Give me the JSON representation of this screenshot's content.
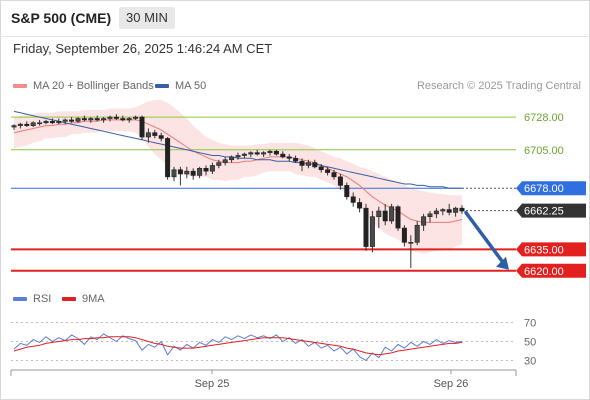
{
  "header": {
    "title": "S&P 500 (CME)",
    "timeframe": "30 MIN",
    "datetime": "Friday, September 26, 2025 1:46:24 AM CET"
  },
  "legend": {
    "items": [
      {
        "label": "MA 20 + Bollinger Bands",
        "color": "#f28c8c"
      },
      {
        "label": "MA 50",
        "color": "#3a5da8"
      }
    ],
    "credit": "Research © 2025 Trading Central"
  },
  "rsi_legend": {
    "items": [
      {
        "label": "RSI",
        "color": "#5b7fd6"
      },
      {
        "label": "9MA",
        "color": "#e02020"
      }
    ]
  },
  "chart_data": [
    {
      "type": "line",
      "title": "S&P 500 (CME)",
      "ylim": [
        6610,
        6740
      ],
      "x_ticks": [
        "Sep 25",
        "Sep 26"
      ],
      "levels": [
        {
          "name": "6728.00",
          "value": 6728.0,
          "color": "#8cc63f",
          "kind": "resistance"
        },
        {
          "name": "6705.00",
          "value": 6705.0,
          "color": "#8cc63f",
          "kind": "resistance"
        },
        {
          "name": "6678.00",
          "value": 6678.0,
          "color": "#2f6fe0",
          "kind": "pivot"
        },
        {
          "name": "6662.25",
          "value": 6662.25,
          "color": "#333333",
          "kind": "last"
        },
        {
          "name": "6635.00",
          "value": 6635.0,
          "color": "#e32020",
          "kind": "support"
        },
        {
          "name": "6620.00",
          "value": 6620.0,
          "color": "#e32020",
          "kind": "support"
        }
      ],
      "candles": [
        {
          "o": 6721,
          "h": 6723,
          "l": 6719,
          "c": 6722
        },
        {
          "o": 6722,
          "h": 6724,
          "l": 6720,
          "c": 6723
        },
        {
          "o": 6723,
          "h": 6725,
          "l": 6721,
          "c": 6722
        },
        {
          "o": 6722,
          "h": 6725,
          "l": 6721,
          "c": 6724
        },
        {
          "o": 6724,
          "h": 6726,
          "l": 6722,
          "c": 6724
        },
        {
          "o": 6724,
          "h": 6726,
          "l": 6723,
          "c": 6725
        },
        {
          "o": 6725,
          "h": 6727,
          "l": 6723,
          "c": 6724
        },
        {
          "o": 6724,
          "h": 6727,
          "l": 6723,
          "c": 6725
        },
        {
          "o": 6725,
          "h": 6727,
          "l": 6723,
          "c": 6726
        },
        {
          "o": 6726,
          "h": 6728,
          "l": 6724,
          "c": 6725
        },
        {
          "o": 6725,
          "h": 6728,
          "l": 6724,
          "c": 6727
        },
        {
          "o": 6727,
          "h": 6729,
          "l": 6725,
          "c": 6726
        },
        {
          "o": 6726,
          "h": 6728,
          "l": 6724,
          "c": 6727
        },
        {
          "o": 6727,
          "h": 6729,
          "l": 6725,
          "c": 6726
        },
        {
          "o": 6726,
          "h": 6728,
          "l": 6724,
          "c": 6727
        },
        {
          "o": 6727,
          "h": 6729,
          "l": 6725,
          "c": 6728
        },
        {
          "o": 6728,
          "h": 6730,
          "l": 6726,
          "c": 6727
        },
        {
          "o": 6727,
          "h": 6729,
          "l": 6725,
          "c": 6726
        },
        {
          "o": 6726,
          "h": 6728,
          "l": 6724,
          "c": 6727
        },
        {
          "o": 6727,
          "h": 6729,
          "l": 6726,
          "c": 6728
        },
        {
          "o": 6728,
          "h": 6729,
          "l": 6712,
          "c": 6714
        },
        {
          "o": 6714,
          "h": 6720,
          "l": 6710,
          "c": 6717
        },
        {
          "o": 6717,
          "h": 6719,
          "l": 6713,
          "c": 6715
        },
        {
          "o": 6715,
          "h": 6717,
          "l": 6711,
          "c": 6713
        },
        {
          "o": 6713,
          "h": 6714,
          "l": 6684,
          "c": 6686
        },
        {
          "o": 6686,
          "h": 6693,
          "l": 6683,
          "c": 6691
        },
        {
          "o": 6691,
          "h": 6693,
          "l": 6680,
          "c": 6688
        },
        {
          "o": 6688,
          "h": 6693,
          "l": 6685,
          "c": 6690
        },
        {
          "o": 6690,
          "h": 6692,
          "l": 6684,
          "c": 6687
        },
        {
          "o": 6687,
          "h": 6693,
          "l": 6685,
          "c": 6692
        },
        {
          "o": 6692,
          "h": 6694,
          "l": 6687,
          "c": 6690
        },
        {
          "o": 6690,
          "h": 6696,
          "l": 6688,
          "c": 6694
        },
        {
          "o": 6694,
          "h": 6698,
          "l": 6692,
          "c": 6696
        },
        {
          "o": 6696,
          "h": 6700,
          "l": 6694,
          "c": 6698
        },
        {
          "o": 6698,
          "h": 6701,
          "l": 6696,
          "c": 6700
        },
        {
          "o": 6700,
          "h": 6703,
          "l": 6698,
          "c": 6701
        },
        {
          "o": 6701,
          "h": 6703,
          "l": 6699,
          "c": 6702
        },
        {
          "o": 6702,
          "h": 6704,
          "l": 6700,
          "c": 6703
        },
        {
          "o": 6703,
          "h": 6705,
          "l": 6701,
          "c": 6702
        },
        {
          "o": 6702,
          "h": 6704,
          "l": 6700,
          "c": 6703
        },
        {
          "o": 6703,
          "h": 6705,
          "l": 6701,
          "c": 6704
        },
        {
          "o": 6704,
          "h": 6705,
          "l": 6701,
          "c": 6702
        },
        {
          "o": 6702,
          "h": 6704,
          "l": 6699,
          "c": 6700
        },
        {
          "o": 6700,
          "h": 6702,
          "l": 6697,
          "c": 6699
        },
        {
          "o": 6699,
          "h": 6701,
          "l": 6696,
          "c": 6697
        },
        {
          "o": 6697,
          "h": 6699,
          "l": 6690,
          "c": 6694
        },
        {
          "o": 6694,
          "h": 6698,
          "l": 6692,
          "c": 6696
        },
        {
          "o": 6696,
          "h": 6698,
          "l": 6692,
          "c": 6693
        },
        {
          "o": 6693,
          "h": 6695,
          "l": 6689,
          "c": 6691
        },
        {
          "o": 6691,
          "h": 6693,
          "l": 6687,
          "c": 6689
        },
        {
          "o": 6689,
          "h": 6691,
          "l": 6684,
          "c": 6686
        },
        {
          "o": 6686,
          "h": 6688,
          "l": 6677,
          "c": 6680
        },
        {
          "o": 6680,
          "h": 6682,
          "l": 6670,
          "c": 6672
        },
        {
          "o": 6672,
          "h": 6675,
          "l": 6665,
          "c": 6668
        },
        {
          "o": 6668,
          "h": 6671,
          "l": 6661,
          "c": 6664
        },
        {
          "o": 6664,
          "h": 6667,
          "l": 6634,
          "c": 6637
        },
        {
          "o": 6637,
          "h": 6662,
          "l": 6633,
          "c": 6658
        },
        {
          "o": 6658,
          "h": 6665,
          "l": 6650,
          "c": 6662
        },
        {
          "o": 6662,
          "h": 6667,
          "l": 6652,
          "c": 6655
        },
        {
          "o": 6655,
          "h": 6667,
          "l": 6653,
          "c": 6665
        },
        {
          "o": 6665,
          "h": 6666,
          "l": 6648,
          "c": 6650
        },
        {
          "o": 6650,
          "h": 6652,
          "l": 6637,
          "c": 6640
        },
        {
          "o": 6640,
          "h": 6645,
          "l": 6622,
          "c": 6640
        },
        {
          "o": 6640,
          "h": 6655,
          "l": 6638,
          "c": 6652
        },
        {
          "o": 6652,
          "h": 6660,
          "l": 6648,
          "c": 6658
        },
        {
          "o": 6658,
          "h": 6662,
          "l": 6654,
          "c": 6660
        },
        {
          "o": 6660,
          "h": 6664,
          "l": 6657,
          "c": 6662
        },
        {
          "o": 6662,
          "h": 6664,
          "l": 6659,
          "c": 6663
        },
        {
          "o": 6663,
          "h": 6667,
          "l": 6659,
          "c": 6661
        },
        {
          "o": 6661,
          "h": 6665,
          "l": 6658,
          "c": 6664
        },
        {
          "o": 6664,
          "h": 6666,
          "l": 6660,
          "c": 6662
        }
      ],
      "ma20": [
        6717,
        6718,
        6719,
        6720,
        6721,
        6722,
        6722,
        6723,
        6723,
        6724,
        6724,
        6725,
        6725,
        6725,
        6726,
        6726,
        6726,
        6726,
        6726,
        6726,
        6725,
        6723,
        6721,
        6719,
        6716,
        6713,
        6710,
        6707,
        6704,
        6702,
        6700,
        6698,
        6697,
        6696,
        6696,
        6696,
        6697,
        6697,
        6698,
        6699,
        6700,
        6700,
        6700,
        6700,
        6699,
        6698,
        6697,
        6696,
        6694,
        6692,
        6690,
        6688,
        6686,
        6683,
        6680,
        6676,
        6672,
        6669,
        6666,
        6664,
        6662,
        6659,
        6656,
        6655,
        6654,
        6654,
        6654,
        6654,
        6654,
        6655,
        6656
      ],
      "bb_upper": [
        6728,
        6729,
        6730,
        6730,
        6731,
        6731,
        6731,
        6732,
        6732,
        6732,
        6732,
        6733,
        6733,
        6733,
        6733,
        6734,
        6734,
        6734,
        6734,
        6735,
        6737,
        6739,
        6740,
        6740,
        6738,
        6735,
        6731,
        6727,
        6722,
        6718,
        6714,
        6712,
        6710,
        6709,
        6708,
        6708,
        6708,
        6708,
        6709,
        6709,
        6710,
        6710,
        6710,
        6710,
        6710,
        6709,
        6708,
        6706,
        6704,
        6702,
        6700,
        6699,
        6697,
        6695,
        6693,
        6692,
        6690,
        6688,
        6686,
        6684,
        6682,
        6680,
        6678,
        6677,
        6676,
        6675,
        6674,
        6674,
        6673,
        6673,
        6673
      ],
      "bb_lower": [
        6706,
        6707,
        6708,
        6710,
        6711,
        6713,
        6713,
        6714,
        6714,
        6716,
        6716,
        6717,
        6717,
        6717,
        6719,
        6718,
        6718,
        6718,
        6718,
        6717,
        6713,
        6707,
        6702,
        6698,
        6694,
        6691,
        6689,
        6687,
        6686,
        6686,
        6686,
        6684,
        6684,
        6683,
        6684,
        6684,
        6686,
        6686,
        6687,
        6689,
        6690,
        6690,
        6690,
        6690,
        6688,
        6687,
        6686,
        6686,
        6684,
        6682,
        6680,
        6677,
        6675,
        6671,
        6667,
        6660,
        6654,
        6650,
        6646,
        6644,
        6642,
        6638,
        6634,
        6633,
        6632,
        6633,
        6634,
        6634,
        6635,
        6637,
        6639
      ],
      "ma50": [
        6732,
        6731,
        6730,
        6729,
        6728,
        6727,
        6726,
        6725,
        6724,
        6723,
        6722,
        6721,
        6720,
        6719,
        6718,
        6717,
        6716,
        6715,
        6714,
        6713,
        6712,
        6711,
        6710,
        6709,
        6708,
        6707,
        6706,
        6705,
        6704,
        6703,
        6702,
        6701,
        6701,
        6700,
        6700,
        6699,
        6699,
        6699,
        6698,
        6698,
        6698,
        6697,
        6697,
        6697,
        6696,
        6696,
        6695,
        6695,
        6694,
        6693,
        6692,
        6691,
        6690,
        6689,
        6688,
        6687,
        6686,
        6685,
        6684,
        6683,
        6682,
        6681,
        6681,
        6680,
        6680,
        6679,
        6679,
        6679,
        6678,
        6678,
        6678
      ],
      "projection": {
        "from": 6662.25,
        "to": 6620.0
      }
    },
    {
      "type": "line",
      "title": "RSI",
      "ylim": [
        20,
        80
      ],
      "y_ticks": [
        70,
        50,
        30
      ],
      "series": [
        {
          "name": "RSI",
          "color": "#5b7fd6",
          "values": [
            42,
            48,
            46,
            52,
            49,
            55,
            50,
            54,
            51,
            57,
            53,
            47,
            55,
            52,
            58,
            54,
            50,
            56,
            53,
            51,
            41,
            47,
            44,
            50,
            36,
            45,
            41,
            47,
            43,
            49,
            46,
            52,
            49,
            55,
            52,
            56,
            53,
            57,
            54,
            56,
            53,
            57,
            50,
            54,
            48,
            52,
            45,
            49,
            43,
            46,
            40,
            44,
            37,
            42,
            34,
            30,
            38,
            33,
            44,
            40,
            47,
            43,
            49,
            45,
            50,
            47,
            52,
            48,
            51,
            49,
            50
          ]
        },
        {
          "name": "9MA",
          "color": "#e02020",
          "values": [
            40,
            42,
            44,
            45,
            46,
            48,
            49,
            50,
            51,
            52,
            52,
            53,
            53,
            54,
            54,
            55,
            55,
            55,
            55,
            54,
            52,
            50,
            48,
            47,
            45,
            44,
            43,
            43,
            43,
            44,
            45,
            46,
            47,
            48,
            49,
            50,
            51,
            52,
            53,
            54,
            54,
            54,
            54,
            53,
            52,
            51,
            50,
            49,
            48,
            47,
            46,
            45,
            43,
            42,
            40,
            38,
            37,
            36,
            37,
            38,
            40,
            41,
            42,
            43,
            44,
            45,
            46,
            47,
            48,
            48,
            49
          ]
        }
      ]
    }
  ]
}
